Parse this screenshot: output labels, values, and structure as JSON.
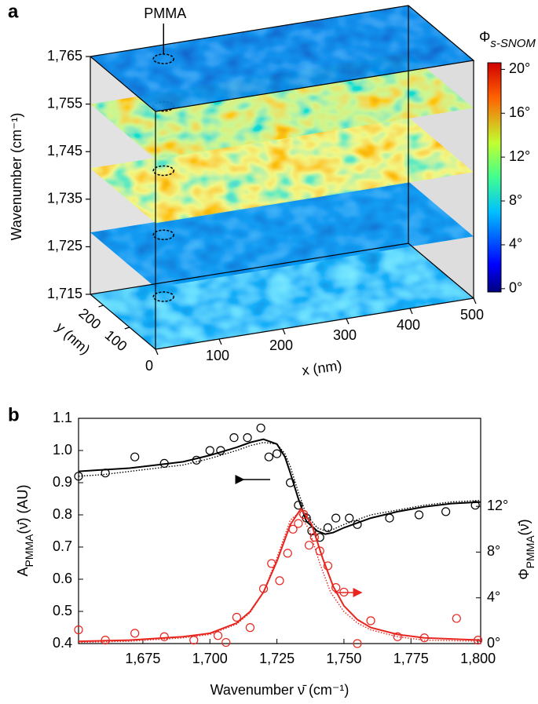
{
  "chart_data": [
    {
      "type": "heatmap3d",
      "panel_label": "a",
      "annotation": "PMMA",
      "xlabel": "x (nm)",
      "ylabel": "y (nm)",
      "zlabel": "Wavenumber (cm⁻¹)",
      "xlim": [
        0,
        500
      ],
      "xticks": [
        0,
        100,
        200,
        300,
        400,
        500
      ],
      "ylim": [
        0,
        250
      ],
      "yticks": [
        100,
        200
      ],
      "zlim": [
        1715,
        1765
      ],
      "zticks": [
        {
          "value": 1715,
          "label": "1,715"
        },
        {
          "value": 1725,
          "label": "1,725"
        },
        {
          "value": 1735,
          "label": "1,735"
        },
        {
          "value": 1745,
          "label": "1,745"
        },
        {
          "value": 1755,
          "label": "1,755"
        },
        {
          "value": 1765,
          "label": "1,765"
        }
      ],
      "colorbar": {
        "title": [
          "Φ",
          "s-SNOM"
        ],
        "clim": [
          -0.3,
          20.6
        ],
        "ticks": [
          {
            "value": 0,
            "label": "0°"
          },
          {
            "value": 4,
            "label": "4°"
          },
          {
            "value": 8,
            "label": "8°"
          },
          {
            "value": 12,
            "label": "12°"
          },
          {
            "value": 16,
            "label": "16°"
          },
          {
            "value": 20,
            "label": "20°"
          }
        ]
      }
    },
    {
      "type": "line",
      "panel_label": "b",
      "xlabel": "Wavenumber ν̄ (cm⁻¹)",
      "ylabel": [
        "A",
        "PMMA",
        "(ν̄) (AU)"
      ],
      "y2label": [
        "Φ",
        "PMMA",
        "(ν̄)"
      ],
      "xlim": [
        1651,
        1801
      ],
      "xticks": [
        {
          "value": 1675,
          "label": "1,675"
        },
        {
          "value": 1700,
          "label": "1,700"
        },
        {
          "value": 1725,
          "label": "1,725"
        },
        {
          "value": 1750,
          "label": "1,750"
        },
        {
          "value": 1775,
          "label": "1,775"
        },
        {
          "value": 1800,
          "label": "1,800"
        }
      ],
      "ylim": [
        0.4,
        1.1
      ],
      "yticks": [
        0.4,
        0.5,
        0.6,
        0.7,
        0.8,
        0.9,
        {
          "value": 1,
          "label": "1.0"
        },
        1.1
      ],
      "y2lim": [
        0,
        19.7
      ],
      "y2ticks": [
        {
          "value": 0,
          "label": "0°"
        },
        {
          "value": 4,
          "label": "4°"
        },
        {
          "value": 8,
          "label": "8°"
        },
        {
          "value": 12,
          "label": "12°"
        }
      ],
      "series": [
        {
          "color": "#000000",
          "style": "markers",
          "axis": "y",
          "x": [
            1651,
            1661,
            1672,
            1683,
            1695,
            1700,
            1704,
            1709,
            1714,
            1719,
            1722,
            1725,
            1730,
            1733,
            1736,
            1738,
            1741,
            1744,
            1747,
            1752,
            1755,
            1767,
            1778,
            1788,
            1799
          ],
          "values": [
            0.92,
            0.93,
            0.98,
            0.96,
            0.97,
            1.0,
            1.0,
            1.04,
            1.04,
            1.07,
            0.98,
            0.99,
            0.9,
            0.83,
            0.79,
            0.75,
            0.73,
            0.76,
            0.79,
            0.79,
            0.77,
            0.79,
            0.8,
            0.81,
            0.83
          ]
        },
        {
          "color": "#000000",
          "style": "solid",
          "axis": "y",
          "x": [
            1651,
            1660,
            1670,
            1680,
            1690,
            1700,
            1710,
            1715,
            1720,
            1725,
            1728,
            1730,
            1733,
            1736,
            1740,
            1743,
            1746,
            1750,
            1760,
            1770,
            1780,
            1790,
            1801
          ],
          "values": [
            0.935,
            0.94,
            0.945,
            0.955,
            0.965,
            0.985,
            1.01,
            1.025,
            1.035,
            1.02,
            0.98,
            0.93,
            0.85,
            0.78,
            0.75,
            0.74,
            0.745,
            0.76,
            0.79,
            0.81,
            0.825,
            0.835,
            0.84
          ]
        },
        {
          "color": "#000000",
          "style": "dotted",
          "axis": "y",
          "x": [
            1651,
            1660,
            1670,
            1680,
            1690,
            1700,
            1710,
            1715,
            1720,
            1725,
            1728,
            1730,
            1733,
            1736,
            1740,
            1743,
            1746,
            1750,
            1760,
            1770,
            1780,
            1790,
            1801
          ],
          "values": [
            0.92,
            0.925,
            0.935,
            0.945,
            0.955,
            0.975,
            1.0,
            1.015,
            1.025,
            1.02,
            0.99,
            0.95,
            0.87,
            0.8,
            0.76,
            0.75,
            0.755,
            0.77,
            0.8,
            0.815,
            0.83,
            0.84,
            0.845
          ]
        },
        {
          "color": "#e8251f",
          "style": "markers",
          "axis": "y2",
          "x": [
            1651,
            1661,
            1672,
            1683,
            1694,
            1703,
            1706,
            1710,
            1715,
            1720,
            1723,
            1726,
            1729,
            1731,
            1733,
            1735,
            1737,
            1739,
            1741,
            1744,
            1747,
            1750,
            1755,
            1760,
            1770,
            1780,
            1792,
            1800
          ],
          "values": [
            1.2,
            0.3,
            0.9,
            0.6,
            0.3,
            0.7,
            0.1,
            2.3,
            1.4,
            4.8,
            7.0,
            5.5,
            7.9,
            10.0,
            10.5,
            11.3,
            8.6,
            9.3,
            8.1,
            6.8,
            4.9,
            4.5,
            0.0,
            2.0,
            0.6,
            0.5,
            2.2,
            0.3
          ]
        },
        {
          "color": "#e8251f",
          "style": "solid",
          "axis": "y2",
          "x": [
            1651,
            1670,
            1690,
            1700,
            1710,
            1715,
            1720,
            1725,
            1730,
            1734,
            1738,
            1742,
            1746,
            1750,
            1755,
            1760,
            1770,
            1780,
            1801
          ],
          "values": [
            0.2,
            0.3,
            0.6,
            0.9,
            1.8,
            2.8,
            4.5,
            7.2,
            10.4,
            11.8,
            10.4,
            7.5,
            5.0,
            3.3,
            2.1,
            1.4,
            0.8,
            0.5,
            0.3
          ]
        },
        {
          "color": "#e8251f",
          "style": "dotted",
          "axis": "y2",
          "x": [
            1651,
            1670,
            1690,
            1700,
            1710,
            1715,
            1720,
            1725,
            1730,
            1733,
            1737,
            1741,
            1745,
            1750,
            1755,
            1760,
            1770,
            1780,
            1801
          ],
          "values": [
            0.1,
            0.2,
            0.5,
            0.8,
            1.7,
            2.7,
            4.5,
            7.5,
            10.8,
            11.4,
            10.0,
            7.0,
            4.5,
            2.8,
            1.8,
            1.2,
            0.6,
            0.3,
            0.2
          ]
        }
      ]
    }
  ]
}
